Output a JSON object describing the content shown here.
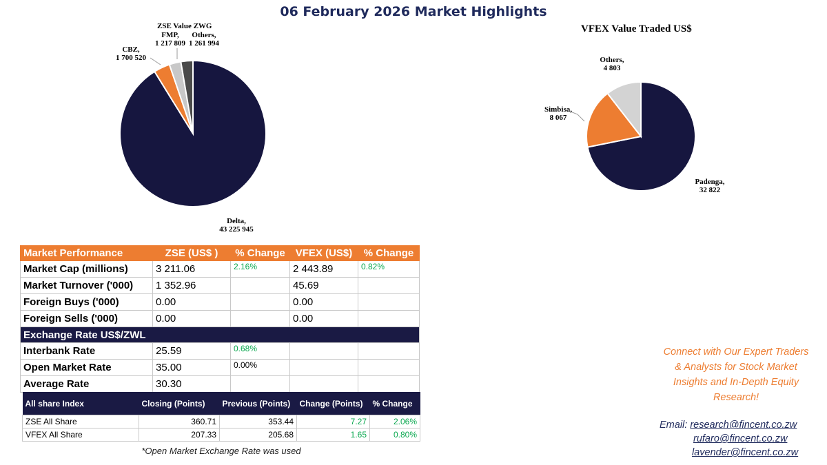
{
  "page_title": "06 February 2026 Market Highlights",
  "chart_data": [
    {
      "type": "pie",
      "title": "ZSE Value ZWG",
      "slices": [
        {
          "name": "Delta",
          "value": 43225945,
          "value_label": "43 225 945",
          "color": "#16163f"
        },
        {
          "name": "CBZ",
          "value": 1700520,
          "value_label": "1 700 520",
          "color": "#ed7d31"
        },
        {
          "name": "FMP",
          "value": 1217809,
          "value_label": "1 217 809",
          "color": "#c8c8c8"
        },
        {
          "name": "Others",
          "value": 1261994,
          "value_label": "1 261 994",
          "color": "#4a4a4a"
        }
      ]
    },
    {
      "type": "pie",
      "title": "VFEX Value Traded US$",
      "slices": [
        {
          "name": "Padenga",
          "value": 32822,
          "value_label": "32 822",
          "color": "#16163f"
        },
        {
          "name": "Simbisa",
          "value": 8067,
          "value_label": "8 067",
          "color": "#ed7d31"
        },
        {
          "name": "Others",
          "value": 4803,
          "value_label": "4 803",
          "color": "#d3d3d3"
        }
      ]
    }
  ],
  "market_table": {
    "header": [
      "Market Performance",
      "ZSE  (US$ )",
      "% Change",
      "VFEX (US$)",
      "% Change"
    ],
    "rows": [
      {
        "label": "Market Cap (millions)",
        "zse": "3 211.06",
        "zse_change": "2.16%",
        "vfex": "2 443.89",
        "vfex_change": "0.82%"
      },
      {
        "label": "Market Turnover ('000)",
        "zse": "1 352.96",
        "zse_change": "",
        "vfex": "45.69",
        "vfex_change": ""
      },
      {
        "label": "Foreign Buys ('000)",
        "zse": "0.00",
        "zse_change": "",
        "vfex": "0.00",
        "vfex_change": ""
      },
      {
        "label": "Foreign Sells ('000)",
        "zse": "0.00",
        "zse_change": "",
        "vfex": "0.00",
        "vfex_change": ""
      }
    ],
    "exchange_header": "Exchange Rate US$/ZWL",
    "exchange_rows": [
      {
        "label": "Interbank Rate",
        "value": "25.59",
        "change": "0.68%"
      },
      {
        "label": "Open Market Rate",
        "value": "35.00",
        "change": "0.00%"
      },
      {
        "label": "Average Rate",
        "value": "30.30",
        "change": ""
      }
    ]
  },
  "index_table": {
    "header": [
      "All share Index",
      "Closing (Points)",
      "Previous (Points)",
      "Change (Points)",
      "% Change"
    ],
    "rows": [
      {
        "name": "ZSE All Share",
        "closing": "360.71",
        "previous": "353.44",
        "change": "7.27",
        "pct": "2.06%"
      },
      {
        "name": "VFEX  All Share",
        "closing": "207.33",
        "previous": "205.68",
        "change": "1.65",
        "pct": "0.80%"
      }
    ]
  },
  "footnote": "*Open Market  Exchange Rate was used",
  "promo": {
    "lines": [
      "Connect with Our Expert Traders",
      "& Analysts for Stock Market",
      "Insights and In-Depth Equity",
      "Research!"
    ]
  },
  "contact": {
    "email_label": "Email: ",
    "emails": [
      "research@fincent.co.zw",
      "rufaro@fincent.co.zw",
      "lavender@fincent.co.zw"
    ]
  }
}
